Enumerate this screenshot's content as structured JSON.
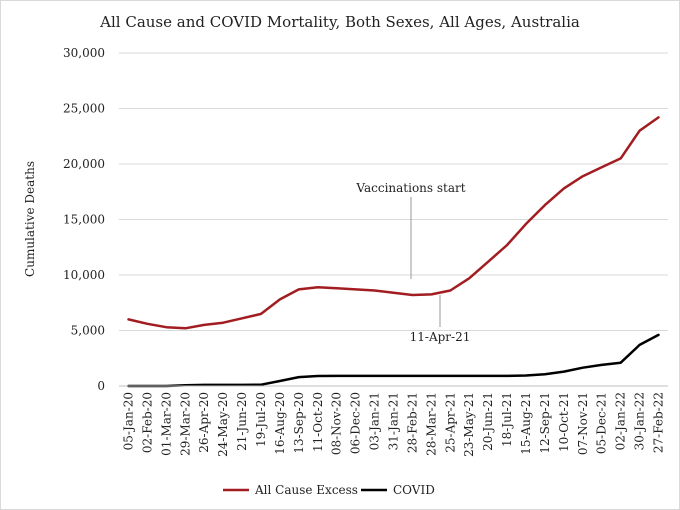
{
  "chart_data": {
    "type": "line",
    "title": "All Cause and COVID Mortality, Both Sexes, All Ages, Australia",
    "xlabel": "",
    "ylabel": "Cumulative Deaths",
    "ylim": [
      0,
      30000
    ],
    "y_ticks": [
      0,
      5000,
      10000,
      15000,
      20000,
      25000,
      30000
    ],
    "y_tick_labels": [
      "0",
      "5,000",
      "10,000",
      "15,000",
      "20,000",
      "25,000",
      "30,000"
    ],
    "x_ticks": [
      "05-Jan-20",
      "02-Feb-20",
      "01-Mar-20",
      "29-Mar-20",
      "26-Apr-20",
      "24-May-20",
      "21-Jun-20",
      "19-Jul-20",
      "16-Aug-20",
      "13-Sep-20",
      "11-Oct-20",
      "08-Nov-20",
      "06-Dec-20",
      "03-Jan-21",
      "31-Jan-21",
      "28-Feb-21",
      "28-Mar-21",
      "25-Apr-21",
      "23-May-21",
      "20-Jun-21",
      "18-Jul-21",
      "15-Aug-21",
      "12-Sep-21",
      "10-Oct-21",
      "07-Nov-21",
      "05-Dec-21",
      "02-Jan-22",
      "30-Jan-22",
      "27-Feb-22"
    ],
    "grid": {
      "horizontal": true,
      "vertical": false
    },
    "legend": "bottom",
    "series": [
      {
        "name": "All Cause Excess",
        "color": "#a11d21",
        "values": [
          6000,
          5600,
          5300,
          5200,
          5500,
          5700,
          6100,
          6500,
          7800,
          8700,
          8900,
          8800,
          8700,
          8600,
          8400,
          8200,
          8250,
          8600,
          9700,
          11200,
          12700,
          14600,
          16300,
          17800,
          18900,
          19700,
          20500,
          23000,
          24200
        ]
      },
      {
        "name": "COVID",
        "color": "#000000",
        "values": [
          0,
          0,
          0,
          60,
          100,
          100,
          100,
          120,
          450,
          800,
          900,
          910,
          910,
          910,
          910,
          910,
          910,
          910,
          910,
          910,
          910,
          950,
          1050,
          1300,
          1650,
          1900,
          2100,
          3700,
          4600
        ]
      }
    ],
    "annotations": [
      {
        "text": "Vaccinations start",
        "x": "28-Feb-21"
      },
      {
        "text": "11-Apr-21",
        "x": "11-Apr-21"
      }
    ]
  }
}
